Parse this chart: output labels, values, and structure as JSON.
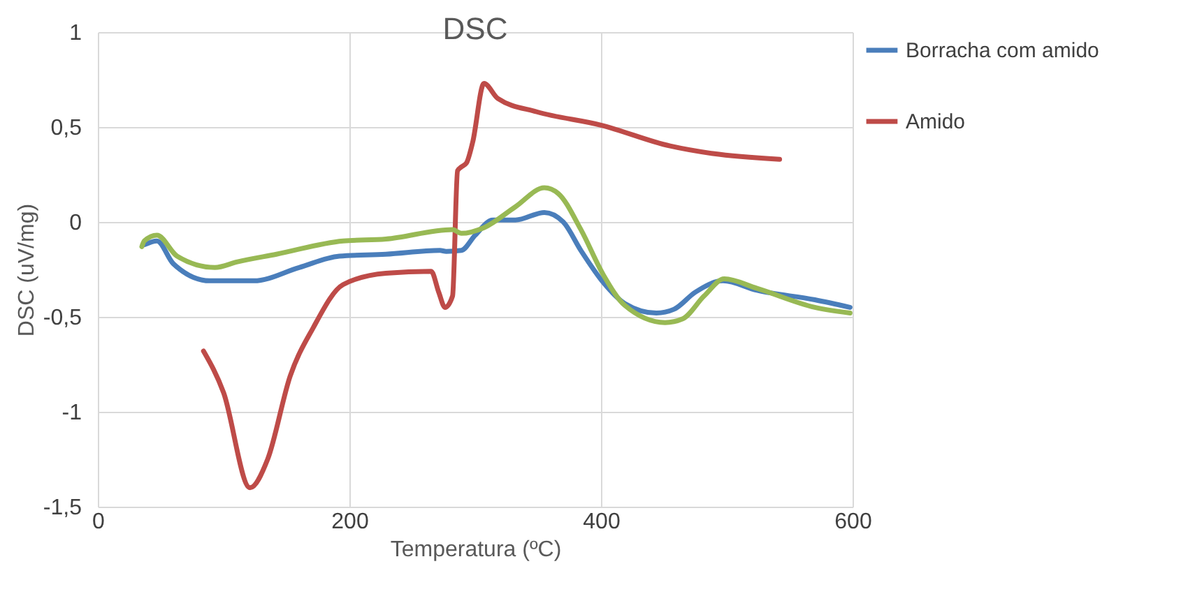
{
  "chart_data": {
    "type": "line",
    "title": "DSC",
    "xlabel": "Temperatura (ºC)",
    "ylabel": "DSC (uV/mg)",
    "xlim": [
      0,
      600
    ],
    "xticks": [
      0,
      200,
      400,
      600
    ],
    "ylim": [
      -1.5,
      1
    ],
    "yticks": [
      {
        "value": -1.5,
        "label": "-1,5"
      },
      -1,
      {
        "value": -0.5,
        "label": "-0,5"
      },
      0,
      {
        "value": 0.5,
        "label": "0,5"
      },
      1
    ],
    "grid": true,
    "legend": "right",
    "series": [
      {
        "name": "Borracha com amido",
        "color": "#4a7ebb",
        "x": [
          37,
          47,
          60,
          89,
          124,
          160,
          192,
          229,
          272,
          277,
          289,
          300,
          314,
          332,
          355,
          370,
          384,
          402,
          419,
          444,
          458,
          475,
          497,
          524,
          570,
          598
        ],
        "values": [
          -0.12,
          -0.1,
          -0.22,
          -0.31,
          -0.31,
          -0.24,
          -0.18,
          -0.17,
          -0.15,
          -0.155,
          -0.15,
          -0.07,
          0.01,
          0.01,
          0.05,
          0,
          -0.15,
          -0.32,
          -0.43,
          -0.48,
          -0.46,
          -0.37,
          -0.31,
          -0.36,
          -0.41,
          -0.45
        ]
      },
      {
        "name": "Amido",
        "color": "#be4b48",
        "x": [
          84,
          100,
          121,
          135,
          153,
          171,
          195,
          229,
          265,
          271,
          276,
          282,
          286,
          289,
          293,
          298,
          307,
          318,
          349,
          400,
          455,
          489,
          542
        ],
        "values": [
          -0.68,
          -0.9,
          -1.4,
          -1.25,
          -0.81,
          -0.56,
          -0.33,
          -0.27,
          -0.26,
          -0.37,
          -0.45,
          -0.39,
          0.27,
          0.29,
          0.31,
          0.42,
          0.73,
          0.65,
          0.58,
          0.51,
          0.4,
          0.36,
          0.33
        ]
      },
      {
        "color": "#98b954",
        "x": [
          35,
          37,
          47,
          63,
          93,
          111,
          142,
          195,
          229,
          282,
          289,
          307,
          332,
          355,
          366,
          384,
          402,
          419,
          451,
          465,
          482,
          498,
          524,
          570,
          598
        ],
        "values": [
          -0.13,
          -0.1,
          -0.07,
          -0.18,
          -0.24,
          -0.21,
          -0.17,
          -0.1,
          -0.09,
          -0.04,
          -0.06,
          -0.03,
          0.08,
          0.18,
          0.15,
          -0.04,
          -0.28,
          -0.44,
          -0.53,
          -0.51,
          -0.39,
          -0.3,
          -0.35,
          -0.45,
          -0.48
        ]
      }
    ]
  }
}
